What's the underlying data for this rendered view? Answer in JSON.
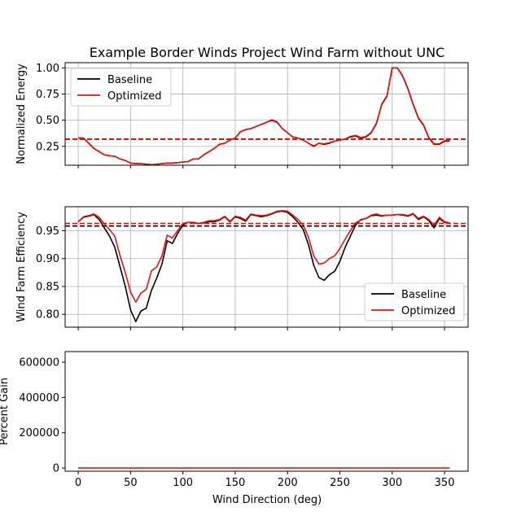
{
  "chart_data": {
    "title": "Example Border Winds Project Wind Farm without UNC",
    "type": "line",
    "xlabel": "Wind Direction (deg)",
    "xlim": [
      -12.5,
      372.5
    ],
    "xticks": [
      0,
      50,
      100,
      150,
      200,
      250,
      300,
      350
    ],
    "colors": {
      "Baseline": "#000000",
      "Optimized": "#e8120f"
    },
    "panels": [
      {
        "ylabel": "Normalized Energy",
        "ylim": [
          0.07,
          1.05
        ],
        "yticks": [
          0.25,
          0.5,
          0.75,
          1.0
        ],
        "ytick_labels": [
          "0.25",
          "0.50",
          "0.75",
          "1.00"
        ],
        "grid": true,
        "legend": {
          "location": "upper-left",
          "entries": [
            "Baseline",
            "Optimized"
          ]
        },
        "hlines": [
          {
            "series": "Baseline",
            "y": 0.318
          },
          {
            "series": "Optimized",
            "y": 0.32
          }
        ],
        "x": [
          0,
          5,
          10,
          15,
          20,
          25,
          30,
          35,
          40,
          45,
          50,
          55,
          60,
          65,
          70,
          75,
          80,
          85,
          90,
          95,
          100,
          105,
          110,
          115,
          120,
          125,
          130,
          135,
          140,
          145,
          150,
          155,
          160,
          165,
          170,
          175,
          180,
          185,
          190,
          195,
          200,
          205,
          210,
          215,
          220,
          225,
          230,
          235,
          240,
          245,
          250,
          255,
          260,
          265,
          270,
          275,
          280,
          285,
          290,
          295,
          300,
          305,
          310,
          315,
          320,
          325,
          330,
          335,
          340,
          345,
          350,
          355
        ],
        "series": [
          {
            "name": "Baseline",
            "values": [
              0.33,
              0.33,
              0.28,
              0.23,
              0.2,
              0.17,
              0.16,
              0.155,
              0.13,
              0.115,
              0.09,
              0.085,
              0.085,
              0.08,
              0.075,
              0.08,
              0.085,
              0.09,
              0.09,
              0.095,
              0.1,
              0.105,
              0.13,
              0.13,
              0.17,
              0.2,
              0.23,
              0.27,
              0.28,
              0.31,
              0.33,
              0.39,
              0.41,
              0.42,
              0.44,
              0.46,
              0.48,
              0.5,
              0.48,
              0.42,
              0.38,
              0.34,
              0.33,
              0.31,
              0.28,
              0.25,
              0.28,
              0.27,
              0.28,
              0.3,
              0.31,
              0.32,
              0.34,
              0.35,
              0.33,
              0.34,
              0.38,
              0.47,
              0.65,
              0.73,
              1.0,
              1.0,
              0.92,
              0.8,
              0.65,
              0.52,
              0.45,
              0.33,
              0.27,
              0.27,
              0.3,
              0.3
            ]
          },
          {
            "name": "Optimized",
            "values": [
              0.33,
              0.33,
              0.28,
              0.23,
              0.2,
              0.17,
              0.16,
              0.155,
              0.13,
              0.115,
              0.09,
              0.085,
              0.085,
              0.08,
              0.075,
              0.08,
              0.085,
              0.09,
              0.09,
              0.095,
              0.1,
              0.105,
              0.13,
              0.13,
              0.17,
              0.2,
              0.23,
              0.27,
              0.28,
              0.31,
              0.33,
              0.39,
              0.41,
              0.42,
              0.44,
              0.46,
              0.48,
              0.505,
              0.485,
              0.42,
              0.38,
              0.34,
              0.33,
              0.31,
              0.28,
              0.255,
              0.28,
              0.275,
              0.285,
              0.3,
              0.31,
              0.32,
              0.345,
              0.355,
              0.335,
              0.345,
              0.385,
              0.475,
              0.655,
              0.735,
              1.0,
              1.0,
              0.925,
              0.805,
              0.655,
              0.525,
              0.455,
              0.335,
              0.275,
              0.275,
              0.305,
              0.305
            ]
          }
        ]
      },
      {
        "ylabel": "Wind Farm Efficiency",
        "ylim": [
          0.777,
          0.993
        ],
        "yticks": [
          0.8,
          0.85,
          0.9,
          0.95
        ],
        "ytick_labels": [
          "0.80",
          "0.85",
          "0.90",
          "0.95"
        ],
        "grid": true,
        "legend": {
          "location": "lower-right",
          "entries": [
            "Baseline",
            "Optimized"
          ]
        },
        "hlines": [
          {
            "series": "Baseline",
            "y": 0.9585
          },
          {
            "series": "Optimized",
            "y": 0.963
          }
        ],
        "x": [
          0,
          5,
          10,
          15,
          20,
          25,
          30,
          35,
          40,
          45,
          50,
          55,
          60,
          65,
          70,
          75,
          80,
          85,
          90,
          95,
          100,
          105,
          110,
          115,
          120,
          125,
          130,
          135,
          140,
          145,
          150,
          155,
          160,
          165,
          170,
          175,
          180,
          185,
          190,
          195,
          200,
          205,
          210,
          215,
          220,
          225,
          230,
          235,
          240,
          245,
          250,
          255,
          260,
          265,
          270,
          275,
          280,
          285,
          290,
          295,
          300,
          305,
          310,
          315,
          320,
          325,
          330,
          335,
          340,
          345,
          350,
          355
        ],
        "series": [
          {
            "name": "Baseline",
            "values": [
              0.966,
              0.974,
              0.976,
              0.979,
              0.97,
              0.955,
              0.94,
              0.92,
              0.885,
              0.85,
              0.808,
              0.787,
              0.806,
              0.811,
              0.843,
              0.865,
              0.89,
              0.932,
              0.927,
              0.945,
              0.96,
              0.965,
              0.964,
              0.963,
              0.964,
              0.966,
              0.966,
              0.969,
              0.975,
              0.966,
              0.975,
              0.972,
              0.967,
              0.979,
              0.977,
              0.975,
              0.977,
              0.98,
              0.984,
              0.985,
              0.983,
              0.975,
              0.965,
              0.952,
              0.925,
              0.888,
              0.866,
              0.861,
              0.871,
              0.877,
              0.895,
              0.92,
              0.94,
              0.96,
              0.97,
              0.972,
              0.977,
              0.978,
              0.976,
              0.978,
              0.978,
              0.979,
              0.978,
              0.976,
              0.98,
              0.97,
              0.975,
              0.968,
              0.955,
              0.972,
              0.965,
              0.963
            ]
          },
          {
            "name": "Optimized",
            "values": [
              0.966,
              0.975,
              0.977,
              0.98,
              0.974,
              0.962,
              0.952,
              0.94,
              0.905,
              0.875,
              0.84,
              0.822,
              0.838,
              0.845,
              0.878,
              0.885,
              0.905,
              0.942,
              0.937,
              0.95,
              0.963,
              0.965,
              0.965,
              0.963,
              0.965,
              0.968,
              0.968,
              0.97,
              0.976,
              0.967,
              0.976,
              0.974,
              0.969,
              0.98,
              0.978,
              0.977,
              0.978,
              0.981,
              0.985,
              0.986,
              0.985,
              0.978,
              0.97,
              0.96,
              0.938,
              0.905,
              0.89,
              0.892,
              0.9,
              0.905,
              0.918,
              0.935,
              0.95,
              0.964,
              0.969,
              0.972,
              0.978,
              0.98,
              0.977,
              0.978,
              0.978,
              0.979,
              0.979,
              0.977,
              0.981,
              0.972,
              0.976,
              0.97,
              0.96,
              0.974,
              0.966,
              0.964
            ]
          }
        ]
      },
      {
        "ylabel": "Percent Gain",
        "ylim": [
          -18000,
          660000
        ],
        "yticks": [
          0,
          200000,
          400000,
          600000
        ],
        "ytick_labels": [
          "0",
          "200000",
          "400000",
          "600000"
        ],
        "grid": false,
        "legend": null,
        "hlines": [],
        "x": [
          0,
          5,
          10,
          15,
          20,
          25,
          30,
          35,
          40,
          45,
          50,
          55,
          60,
          65,
          70,
          75,
          80,
          85,
          90,
          95,
          100,
          105,
          110,
          115,
          120,
          125,
          130,
          135,
          140,
          145,
          150,
          155,
          160,
          165,
          170,
          175,
          180,
          185,
          190,
          195,
          200,
          205,
          210,
          215,
          220,
          225,
          230,
          235,
          240,
          245,
          250,
          255,
          260,
          265,
          270,
          275,
          280,
          285,
          290,
          295,
          300,
          305,
          310,
          315,
          320,
          325,
          330,
          335,
          340,
          345,
          350,
          355
        ],
        "series": [
          {
            "name": "Optimized",
            "values": [
              0,
              0,
              0,
              0,
              0,
              0,
              0,
              0,
              0,
              0,
              0,
              0,
              0,
              0,
              0,
              0,
              0,
              0,
              0,
              0,
              0,
              0,
              0,
              0,
              0,
              0,
              0,
              0,
              0,
              0,
              0,
              0,
              0,
              0,
              0,
              0,
              0,
              0,
              0,
              0,
              0,
              0,
              0,
              0,
              0,
              0,
              0,
              0,
              0,
              0,
              0,
              0,
              0,
              0,
              0,
              0,
              0,
              0,
              0,
              0,
              0,
              0,
              0,
              0,
              0,
              0,
              0,
              0,
              0,
              0,
              0,
              0
            ]
          }
        ]
      }
    ]
  }
}
